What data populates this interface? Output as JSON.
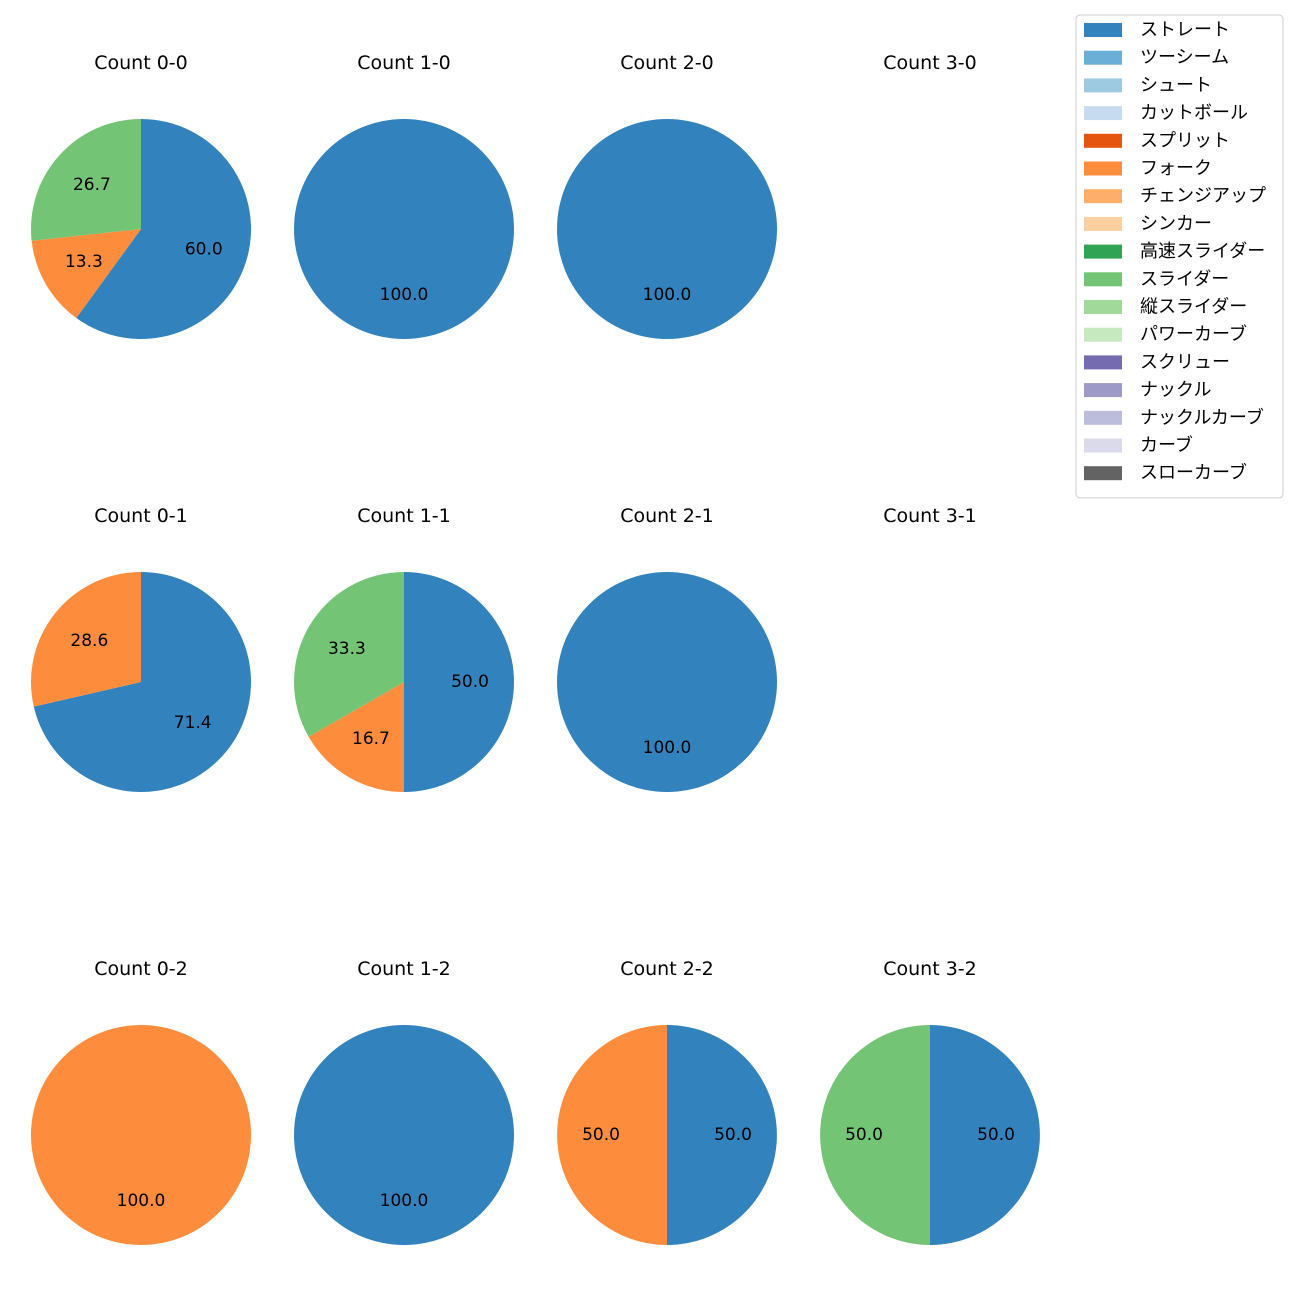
{
  "legend": {
    "entries": [
      {
        "label": "ストレート",
        "color": "#3182bd"
      },
      {
        "label": "ツーシーム",
        "color": "#6baed6"
      },
      {
        "label": "シュート",
        "color": "#9ecae1"
      },
      {
        "label": "カットボール",
        "color": "#c6dbef"
      },
      {
        "label": "スプリット",
        "color": "#e6550d"
      },
      {
        "label": "フォーク",
        "color": "#fd8d3c"
      },
      {
        "label": "チェンジアップ",
        "color": "#fdae6b"
      },
      {
        "label": "シンカー",
        "color": "#fdd0a2"
      },
      {
        "label": "高速スライダー",
        "color": "#31a354"
      },
      {
        "label": "スライダー",
        "color": "#74c476"
      },
      {
        "label": "縦スライダー",
        "color": "#a1d99b"
      },
      {
        "label": "パワーカーブ",
        "color": "#c7e9c0"
      },
      {
        "label": "スクリュー",
        "color": "#756bb1"
      },
      {
        "label": "ナックル",
        "color": "#9e9ac8"
      },
      {
        "label": "ナックルカーブ",
        "color": "#bcbddc"
      },
      {
        "label": "カーブ",
        "color": "#dadaeb"
      },
      {
        "label": "スローカーブ",
        "color": "#636363"
      }
    ]
  },
  "chart_data": [
    {
      "type": "pie",
      "title": "Count 0-0",
      "slices": [
        {
          "name": "ストレート",
          "value": 60.0,
          "label": "60.0"
        },
        {
          "name": "フォーク",
          "value": 13.3,
          "label": "13.3"
        },
        {
          "name": "スライダー",
          "value": 26.7,
          "label": "26.7"
        }
      ]
    },
    {
      "type": "pie",
      "title": "Count 1-0",
      "slices": [
        {
          "name": "ストレート",
          "value": 100.0,
          "label": "100.0"
        }
      ]
    },
    {
      "type": "pie",
      "title": "Count 2-0",
      "slices": [
        {
          "name": "ストレート",
          "value": 100.0,
          "label": "100.0"
        }
      ]
    },
    {
      "type": "pie",
      "title": "Count 3-0",
      "slices": []
    },
    {
      "type": "pie",
      "title": "Count 0-1",
      "slices": [
        {
          "name": "ストレート",
          "value": 71.4,
          "label": "71.4"
        },
        {
          "name": "フォーク",
          "value": 28.6,
          "label": "28.6"
        }
      ]
    },
    {
      "type": "pie",
      "title": "Count 1-1",
      "slices": [
        {
          "name": "ストレート",
          "value": 50.0,
          "label": "50.0"
        },
        {
          "name": "フォーク",
          "value": 16.7,
          "label": "16.7"
        },
        {
          "name": "スライダー",
          "value": 33.3,
          "label": "33.3"
        }
      ]
    },
    {
      "type": "pie",
      "title": "Count 2-1",
      "slices": [
        {
          "name": "ストレート",
          "value": 100.0,
          "label": "100.0"
        }
      ]
    },
    {
      "type": "pie",
      "title": "Count 3-1",
      "slices": []
    },
    {
      "type": "pie",
      "title": "Count 0-2",
      "slices": [
        {
          "name": "フォーク",
          "value": 100.0,
          "label": "100.0"
        }
      ]
    },
    {
      "type": "pie",
      "title": "Count 1-2",
      "slices": [
        {
          "name": "ストレート",
          "value": 100.0,
          "label": "100.0"
        }
      ]
    },
    {
      "type": "pie",
      "title": "Count 2-2",
      "slices": [
        {
          "name": "ストレート",
          "value": 50.0,
          "label": "50.0"
        },
        {
          "name": "フォーク",
          "value": 50.0,
          "label": "50.0"
        }
      ]
    },
    {
      "type": "pie",
      "title": "Count 3-2",
      "slices": [
        {
          "name": "ストレート",
          "value": 50.0,
          "label": "50.0"
        },
        {
          "name": "スライダー",
          "value": 50.0,
          "label": "50.0"
        }
      ]
    }
  ]
}
